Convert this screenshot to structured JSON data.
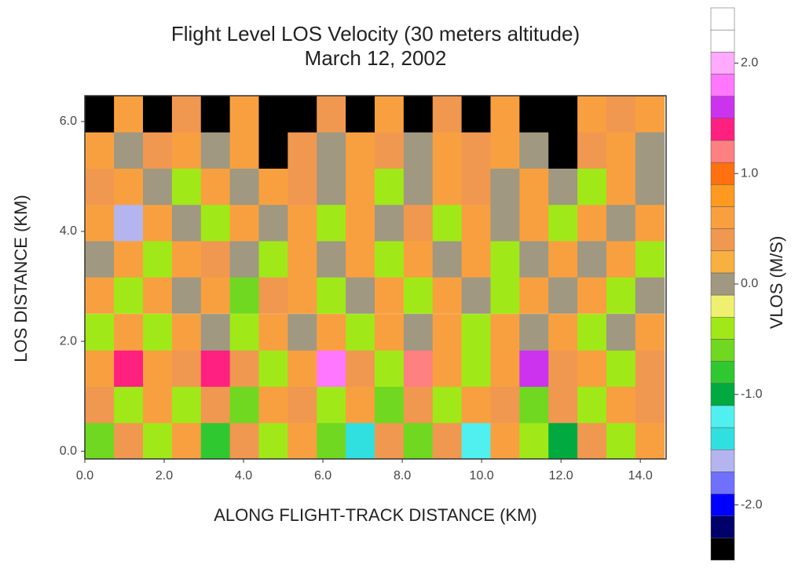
{
  "chart_data": {
    "type": "heatmap",
    "title": "Flight Level LOS Velocity (30 meters altitude)",
    "subtitle": "March 12, 2002",
    "x_label": "ALONG FLIGHT-TRACK DISTANCE (KM)",
    "y_label": "LOS DISTANCE (KM)",
    "xlim": [
      0,
      14.65
    ],
    "ylim": [
      -0.14,
      6.47
    ],
    "xticks": [
      {
        "value": 0,
        "label": "0.0"
      },
      {
        "value": 2,
        "label": "2.0"
      },
      {
        "value": 4,
        "label": "4.0"
      },
      {
        "value": 6,
        "label": "6.0"
      },
      {
        "value": 8,
        "label": "8.0"
      },
      {
        "value": 10,
        "label": "10.0"
      },
      {
        "value": 12,
        "label": "12.0"
      },
      {
        "value": 14,
        "label": "14.0"
      }
    ],
    "yticks": [
      {
        "value": 0,
        "label": "0.0"
      },
      {
        "value": 2,
        "label": "2.0"
      },
      {
        "value": 4,
        "label": "4.0"
      },
      {
        "value": 6,
        "label": "6.0"
      }
    ],
    "x": [
      0.37,
      1.1,
      1.83,
      2.56,
      3.29,
      4.02,
      4.75,
      5.48,
      6.21,
      6.94,
      7.67,
      8.4,
      9.13,
      9.86,
      10.59,
      11.32,
      12.05,
      12.78,
      13.51,
      14.24
    ],
    "y": [
      0.19,
      0.85,
      1.51,
      2.17,
      2.84,
      3.5,
      4.16,
      4.82,
      5.48,
      6.14
    ],
    "z": [
      [
        -0.6,
        0.4,
        -0.4,
        0.6,
        -0.8,
        0.4,
        -0.4,
        0.6,
        -0.6,
        -1.4,
        0.4,
        -0.6,
        0.4,
        -1.2,
        0.6,
        -0.4,
        -1.0,
        0.4,
        -0.4,
        0.6
      ],
      [
        0.4,
        -0.4,
        0.6,
        -0.4,
        0.4,
        -0.6,
        0.6,
        0.4,
        -0.4,
        0.6,
        -0.6,
        0.4,
        -0.4,
        0.6,
        0.4,
        -0.6,
        0.4,
        -0.4,
        0.6,
        0.4
      ],
      [
        0.6,
        1.4,
        0.6,
        0.4,
        1.4,
        0.4,
        -0.4,
        0.6,
        1.8,
        0.4,
        -0.4,
        1.2,
        0.6,
        -0.4,
        0.6,
        1.6,
        0.4,
        0.6,
        -0.4,
        0.4
      ],
      [
        -0.4,
        0.6,
        -0.4,
        0.6,
        0.0,
        -0.4,
        0.6,
        0.0,
        0.6,
        -0.4,
        0.6,
        0.0,
        0.6,
        -0.4,
        0.6,
        0.0,
        0.6,
        -0.4,
        0.0,
        0.6
      ],
      [
        0.6,
        -0.4,
        0.6,
        0.0,
        0.6,
        -0.6,
        0.4,
        0.6,
        -0.4,
        0.0,
        0.6,
        -0.4,
        0.6,
        0.0,
        -0.4,
        0.6,
        0.0,
        0.6,
        -0.4,
        0.0
      ],
      [
        0.0,
        0.6,
        -0.4,
        0.6,
        0.4,
        0.0,
        -0.4,
        0.6,
        0.0,
        0.6,
        -0.4,
        0.6,
        0.0,
        0.6,
        -0.4,
        0.0,
        0.6,
        0.0,
        0.6,
        -0.4
      ],
      [
        0.6,
        -1.6,
        0.6,
        0.0,
        -0.4,
        0.6,
        0.0,
        0.6,
        -0.4,
        0.6,
        0.0,
        0.4,
        -0.4,
        0.6,
        0.0,
        0.6,
        -0.4,
        0.6,
        0.0,
        0.6
      ],
      [
        0.4,
        0.6,
        0.0,
        -0.4,
        0.6,
        0.0,
        0.6,
        0.4,
        0.0,
        0.6,
        -0.4,
        0.0,
        0.6,
        0.4,
        0.0,
        0.6,
        0.0,
        -0.4,
        0.6,
        0.0
      ],
      [
        0.6,
        0.0,
        0.4,
        0.6,
        0.0,
        0.6,
        null,
        0.4,
        0.0,
        0.6,
        0.4,
        0.0,
        0.6,
        0.4,
        0.6,
        0.0,
        null,
        0.4,
        0.6,
        0.0
      ],
      [
        null,
        0.6,
        null,
        0.4,
        null,
        0.6,
        null,
        null,
        0.4,
        null,
        0.6,
        null,
        0.4,
        null,
        0.6,
        null,
        null,
        0.6,
        0.4,
        0.6
      ]
    ],
    "null_color": "#000000",
    "colorbar": {
      "label": "VLOS (M/S)",
      "clim": [
        -2.5,
        2.5
      ],
      "colors": [
        "#000000",
        "#00006a",
        "#0000ff",
        "#7070ff",
        "#b4b4ee",
        "#30e0e0",
        "#50f0f0",
        "#00aa40",
        "#30c830",
        "#70d820",
        "#a0e818",
        "#f0f070",
        "#a09880",
        "#f8b040",
        "#f09850",
        "#f8a040",
        "#ff9920",
        "#ff7010",
        "#ff8080",
        "#ff2080",
        "#cc33ee",
        "#ff77ff",
        "#ffaaff",
        "#ffffff",
        "#ffffff"
      ],
      "ticks": [
        {
          "value": -2,
          "label": "-2.0"
        },
        {
          "value": -1,
          "label": "-1.0"
        },
        {
          "value": 0,
          "label": "0.0"
        },
        {
          "value": 1,
          "label": "1.0"
        },
        {
          "value": 2,
          "label": "2.0"
        }
      ]
    }
  }
}
